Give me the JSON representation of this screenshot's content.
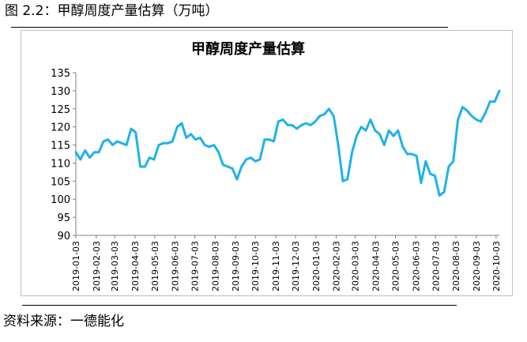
{
  "figure": {
    "caption": "图 2.2：甲醇周度产量估算（万吨）",
    "source": "资料来源：一德能化"
  },
  "chart_data": {
    "type": "line",
    "title": "甲醇周度产量估算",
    "xlabel": "",
    "ylabel": "",
    "ylim": [
      90,
      135
    ],
    "yticks": [
      90,
      95,
      100,
      105,
      110,
      115,
      120,
      125,
      130,
      135
    ],
    "grid": false,
    "legend": "none",
    "color": "#1fb2e8",
    "xtick_labels": [
      "2019-01-03",
      "2019-02-03",
      "2019-03-03",
      "2019-04-03",
      "2019-05-03",
      "2019-06-03",
      "2019-07-03",
      "2019-08-03",
      "2019-09-03",
      "2019-10-03",
      "2019-11-03",
      "2019-12-03",
      "2020-01-03",
      "2020-02-03",
      "2020-03-03",
      "2020-04-03",
      "2020-05-03",
      "2020-06-03",
      "2020-07-03",
      "2020-08-03",
      "2020-09-03",
      "2020-10-03"
    ],
    "x_start": "2019-01-03",
    "x_end": "2020-10-08",
    "x": [
      "2019-01-03",
      "2019-01-10",
      "2019-01-17",
      "2019-01-24",
      "2019-01-31",
      "2019-02-07",
      "2019-02-14",
      "2019-02-21",
      "2019-02-28",
      "2019-03-07",
      "2019-03-14",
      "2019-03-21",
      "2019-03-28",
      "2019-04-04",
      "2019-04-11",
      "2019-04-18",
      "2019-04-25",
      "2019-05-02",
      "2019-05-09",
      "2019-05-16",
      "2019-05-23",
      "2019-05-30",
      "2019-06-06",
      "2019-06-13",
      "2019-06-20",
      "2019-06-27",
      "2019-07-04",
      "2019-07-11",
      "2019-07-18",
      "2019-07-25",
      "2019-08-01",
      "2019-08-08",
      "2019-08-15",
      "2019-08-22",
      "2019-08-29",
      "2019-09-05",
      "2019-09-12",
      "2019-09-19",
      "2019-09-26",
      "2019-10-03",
      "2019-10-10",
      "2019-10-17",
      "2019-10-24",
      "2019-10-31",
      "2019-11-07",
      "2019-11-14",
      "2019-11-21",
      "2019-11-28",
      "2019-12-05",
      "2019-12-12",
      "2019-12-19",
      "2019-12-26",
      "2020-01-02",
      "2020-01-09",
      "2020-01-16",
      "2020-01-23",
      "2020-01-30",
      "2020-02-06",
      "2020-02-13",
      "2020-02-20",
      "2020-02-27",
      "2020-03-05",
      "2020-03-12",
      "2020-03-19",
      "2020-03-26",
      "2020-04-02",
      "2020-04-09",
      "2020-04-16",
      "2020-04-23",
      "2020-04-30",
      "2020-05-07",
      "2020-05-14",
      "2020-05-21",
      "2020-05-28",
      "2020-06-04",
      "2020-06-11",
      "2020-06-18",
      "2020-06-25",
      "2020-07-02",
      "2020-07-09",
      "2020-07-16",
      "2020-07-23",
      "2020-07-30",
      "2020-08-06",
      "2020-08-13",
      "2020-08-20",
      "2020-08-27",
      "2020-09-03",
      "2020-09-10",
      "2020-09-17",
      "2020-09-24",
      "2020-10-01",
      "2020-10-08"
    ],
    "series": [
      {
        "values": [
          113.0,
          111.0,
          113.5,
          111.5,
          113.0,
          113.0,
          116.0,
          116.5,
          115.0,
          116.0,
          115.5,
          115.0,
          119.5,
          118.5,
          109.0,
          109.0,
          111.5,
          111.0,
          115.0,
          115.5,
          115.5,
          116.0,
          120.0,
          121.0,
          117.0,
          118.0,
          116.5,
          117.0,
          115.0,
          114.5,
          115.0,
          113.0,
          109.5,
          109.0,
          108.5,
          105.5,
          109.0,
          111.0,
          111.5,
          110.5,
          111.0,
          116.5,
          116.5,
          116.0,
          121.5,
          122.0,
          120.5,
          120.5,
          119.5,
          120.5,
          121.0,
          120.5,
          121.5,
          123.0,
          123.5,
          125.0,
          123.0,
          115.0,
          105.0,
          105.5,
          113.0,
          117.5,
          120.0,
          119.0,
          122.0,
          119.0,
          118.0,
          115.0,
          119.0,
          117.5,
          119.0,
          114.5,
          112.5,
          112.5,
          112.0,
          104.5,
          110.5,
          107.0,
          106.5,
          101.0,
          102.0,
          109.0,
          110.5,
          122.0,
          125.5,
          124.5,
          123.0,
          122.0,
          121.5,
          124.0,
          127.0,
          127.0,
          130.0
        ]
      }
    ]
  }
}
